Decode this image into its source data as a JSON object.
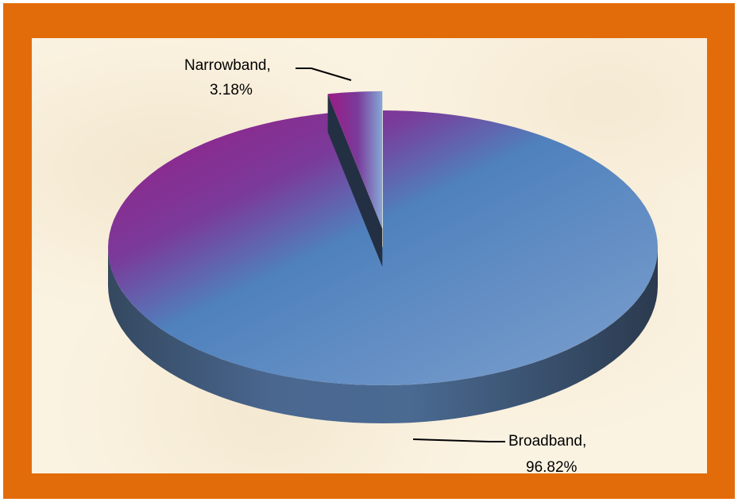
{
  "chart_data": {
    "type": "pie",
    "style": "3d-exploded",
    "slices": [
      {
        "name": "Broadband",
        "value": 96.82,
        "label": "Broadband,",
        "pct_label": "96.82%"
      },
      {
        "name": "Narrowband",
        "value": 3.18,
        "label": "Narrowband,",
        "pct_label": "3.18%",
        "exploded": true
      }
    ],
    "colors": {
      "border": "#E36C0A",
      "background": "#FBF3E2",
      "slice_blue": "#4F81BD",
      "slice_magenta": "#9B1A86",
      "side_dark": "#2E3E55"
    }
  }
}
